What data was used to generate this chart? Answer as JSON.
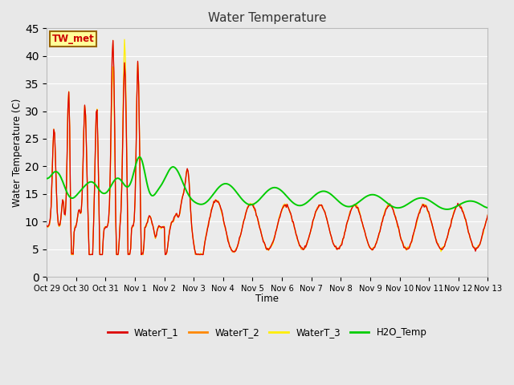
{
  "title": "Water Temperature",
  "xlabel": "Time",
  "ylabel": "Water Temperature (C)",
  "ylim": [
    0,
    45
  ],
  "yticks": [
    0,
    5,
    10,
    15,
    20,
    25,
    30,
    35,
    40,
    45
  ],
  "annotation_text": "TW_met",
  "annotation_color": "#cc0000",
  "annotation_bg": "#ffff99",
  "annotation_border": "#996600",
  "line_colors": {
    "WaterT_1": "#dd0000",
    "WaterT_2": "#ff8800",
    "WaterT_3": "#ffee00",
    "H2O_Temp": "#00cc00"
  },
  "fig_bg": "#e8e8e8",
  "plot_bg": "#ebebeb",
  "grid_color": "#ffffff",
  "tick_labels": [
    "Oct 29",
    "Oct 30",
    "Oct 31",
    "Nov 1",
    "Nov 2",
    "Nov 3",
    "Nov 4",
    "Nov 5",
    "Nov 6",
    "Nov 7",
    "Nov 8",
    "Nov 9",
    "Nov 10",
    "Nov 11",
    "Nov 12",
    "Nov 13"
  ]
}
